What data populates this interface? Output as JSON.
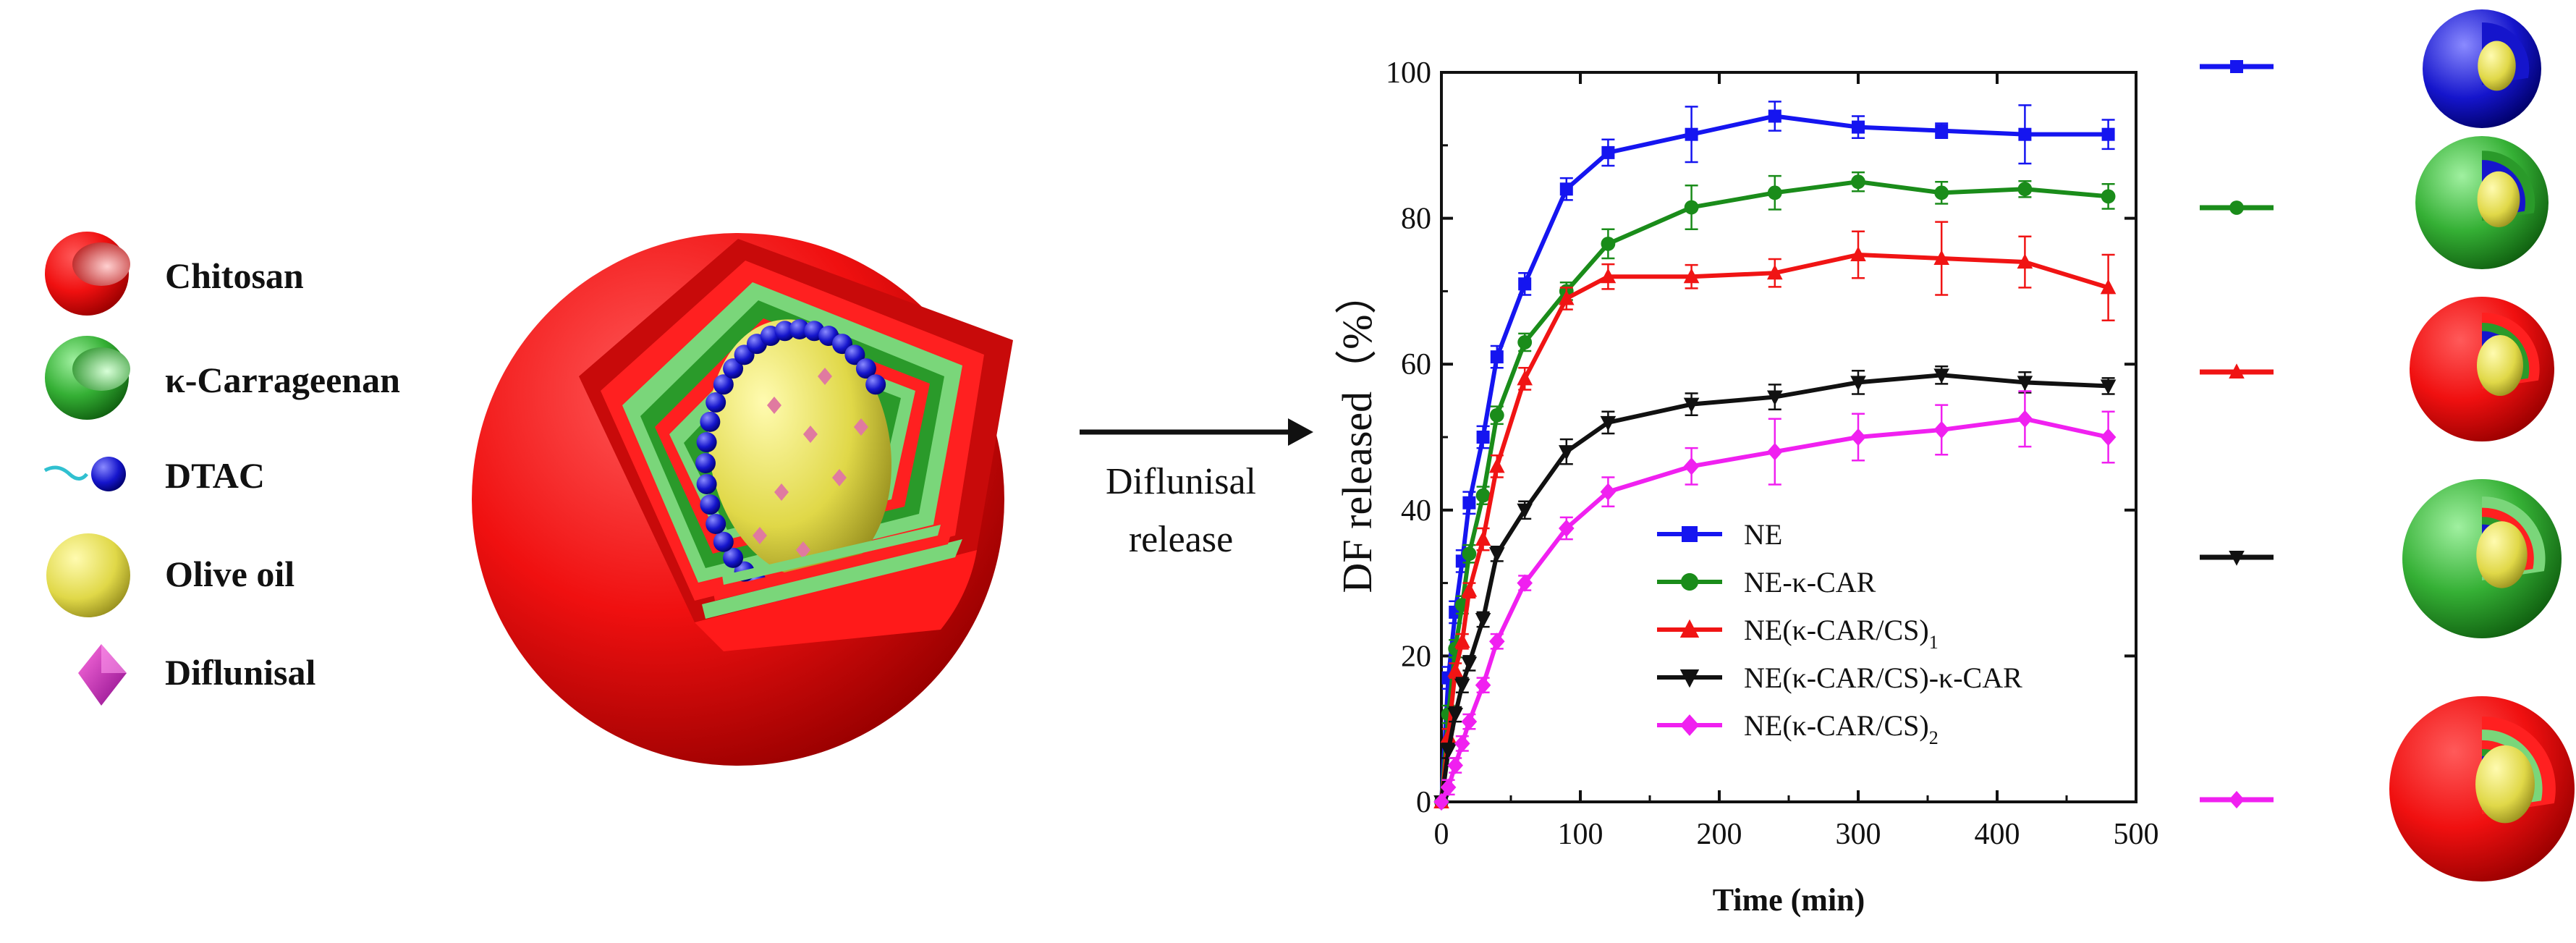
{
  "legend_left": {
    "items": [
      {
        "label": "Chitosan",
        "icon": "chitosan-shell-icon"
      },
      {
        "label": "κ-Carrageenan",
        "icon": "carrageenan-shell-icon"
      },
      {
        "label": "DTAC",
        "icon": "dtac-molecule-icon"
      },
      {
        "label": "Olive oil",
        "icon": "olive-oil-droplet-icon"
      },
      {
        "label": "Diflunisal",
        "icon": "diflunisal-crystal-icon"
      }
    ]
  },
  "arrow_label": {
    "line1": "Diflunisal",
    "line2": "release"
  },
  "colors": {
    "chitosan": "#ee1111",
    "carrageenan": "#2a9a2a",
    "carrageenan_light": "#66e066",
    "dtac": "#1a1acc",
    "oil": "#c8c040",
    "drug": "#e07aa0"
  },
  "chart_data": {
    "type": "line",
    "title": "",
    "xlabel": "Time (min)",
    "ylabel": "DF released（%）",
    "xlim": [
      0,
      500
    ],
    "ylim": [
      0,
      100
    ],
    "xticks": [
      "0",
      "100",
      "200",
      "300",
      "400",
      "500"
    ],
    "yticks": [
      "0",
      "20",
      "40",
      "60",
      "80",
      "100"
    ],
    "x": [
      0,
      5,
      10,
      15,
      20,
      30,
      40,
      60,
      90,
      120,
      180,
      240,
      300,
      360,
      420,
      480
    ],
    "legend_position": "center-bottom",
    "series": [
      {
        "name": "NE",
        "color": "#1515f0",
        "marker": "square",
        "values": [
          0,
          17,
          26,
          33,
          41,
          50,
          61,
          71,
          84,
          89,
          91.5,
          94,
          92.5,
          92,
          91.5,
          91.5
        ],
        "errors": [
          0,
          1.5,
          1.5,
          1.5,
          1.5,
          1.5,
          1.5,
          1.5,
          1.5,
          1.8,
          3.8,
          2,
          1.5,
          1,
          4,
          2
        ]
      },
      {
        "name": "NE-κ-CAR",
        "color": "#1a8c1a",
        "marker": "circle",
        "values": [
          0,
          12,
          21,
          27,
          34,
          42,
          53,
          63,
          70,
          76.5,
          81.5,
          83.5,
          85,
          83.5,
          84,
          83
        ],
        "errors": [
          0,
          1.2,
          1.2,
          1.2,
          1.2,
          1.2,
          1.2,
          1.2,
          1.2,
          2,
          3,
          2.3,
          1.3,
          1.5,
          1.1,
          1.7
        ]
      },
      {
        "name": "NE(κ-CAR/CS)",
        "subscript": "1",
        "color": "#f01414",
        "marker": "triangle-up",
        "values": [
          0,
          9,
          18,
          22,
          29,
          36,
          46,
          58,
          69,
          72,
          72,
          72.5,
          75,
          74.5,
          74,
          70.5
        ],
        "errors": [
          0,
          1,
          1,
          1,
          1,
          1.5,
          1.5,
          1.5,
          1.5,
          1.7,
          1.6,
          1.9,
          3.2,
          5,
          3.5,
          4.5
        ]
      },
      {
        "name": "NE(κ-CAR/CS)-κ-CAR",
        "color": "#111111",
        "marker": "triangle-down",
        "values": [
          0,
          7,
          12,
          16,
          19,
          25,
          34,
          40,
          48,
          52,
          54.5,
          55.5,
          57.5,
          58.5,
          57.5,
          57
        ],
        "errors": [
          0,
          1,
          1,
          1,
          1,
          1,
          1,
          1.2,
          1.7,
          1.5,
          1.5,
          1.7,
          1.6,
          1.2,
          1.4,
          1.1
        ]
      },
      {
        "name": "NE(κ-CAR/CS)",
        "subscript": "2",
        "color": "#f020f0",
        "marker": "diamond",
        "values": [
          0,
          2,
          5,
          8,
          11,
          16,
          22,
          30,
          37.5,
          42.5,
          46,
          48,
          50,
          51,
          52.5,
          50
        ],
        "errors": [
          0,
          1,
          1,
          1,
          1,
          1,
          1,
          1,
          1.5,
          2,
          2.5,
          4.5,
          3.2,
          3.4,
          3.8,
          3.5
        ]
      }
    ]
  }
}
